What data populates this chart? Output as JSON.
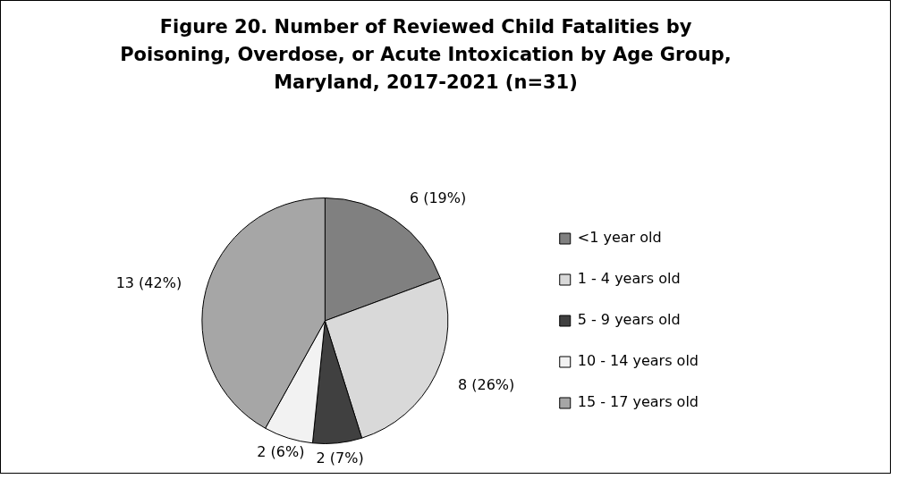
{
  "chart_data": {
    "type": "pie",
    "title": "Figure 20. Number of Reviewed Child Fatalities by Poisoning, Overdose, or Acute Intoxication by Age Group, Maryland, 2017-2021 (n=31)",
    "categories": [
      "<1 year old",
      "1 - 4 years old",
      "5 - 9 years old",
      "10 - 14 years old",
      "15 - 17 years old"
    ],
    "values": [
      6,
      8,
      2,
      2,
      13
    ],
    "value_labels": [
      "6 (19%)",
      "8 (26%)",
      "2 (7%)",
      "2 (6%)",
      "13 (42%)"
    ],
    "colors": [
      "#808080",
      "#d9d9d9",
      "#404040",
      "#f2f2f2",
      "#a6a6a6"
    ],
    "legend": "right"
  }
}
